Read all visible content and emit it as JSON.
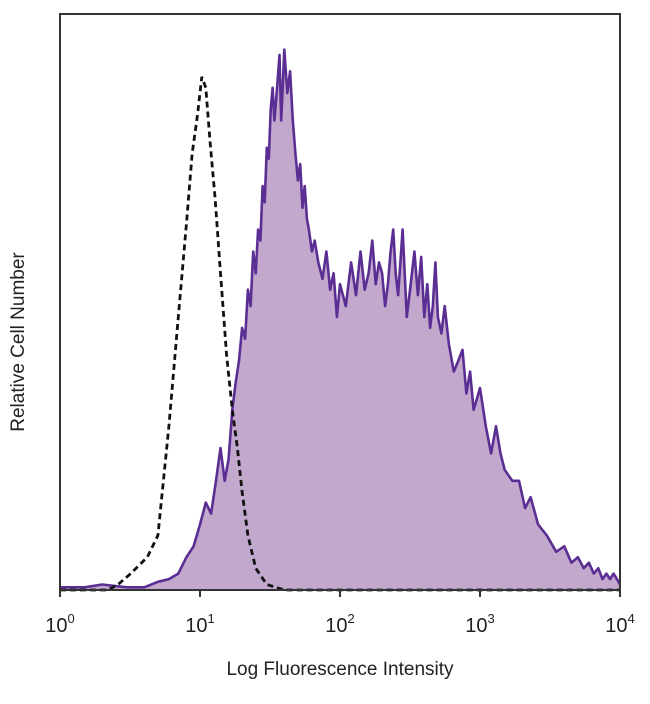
{
  "chart_data": {
    "type": "area",
    "title": "",
    "xlabel": "Log Fluorescence Intensity",
    "ylabel": "Relative Cell Number",
    "x_scale": "log",
    "xlim": [
      1,
      10000
    ],
    "ylim": [
      0,
      100
    ],
    "grid": false,
    "legend": "none",
    "xticks": [
      {
        "base": "10",
        "exp": "0",
        "value": 1
      },
      {
        "base": "10",
        "exp": "1",
        "value": 10
      },
      {
        "base": "10",
        "exp": "2",
        "value": 100
      },
      {
        "base": "10",
        "exp": "3",
        "value": 1000
      },
      {
        "base": "10",
        "exp": "4",
        "value": 10000
      }
    ],
    "series": [
      {
        "style": "dashed",
        "color": "#111111",
        "x": [
          1,
          2.2,
          2.6,
          3.2,
          4.2,
          5,
          6,
          7,
          8,
          8.8,
          9.6,
          10.3,
          11,
          11.8,
          12.8,
          14,
          15.5,
          17,
          18.5,
          20,
          22,
          25,
          30,
          40,
          100,
          1000,
          10000
        ],
        "y": [
          0,
          0,
          1,
          3,
          6,
          10,
          30,
          50,
          67,
          80,
          87,
          94,
          92,
          82,
          72,
          58,
          43,
          33,
          26,
          18,
          10,
          4,
          1,
          0,
          0,
          0,
          0
        ]
      },
      {
        "style": "filled",
        "color": "#5b2e94",
        "fill": "#c2a8cc",
        "x": [
          1,
          1.5,
          2,
          3,
          4,
          5,
          6,
          7,
          8,
          9,
          10,
          11,
          12,
          13,
          14,
          15,
          16,
          17,
          18,
          19,
          20,
          21,
          22,
          23,
          24,
          25,
          26,
          27,
          28,
          29,
          30,
          31,
          32,
          33,
          34,
          35,
          36,
          37,
          38,
          39,
          40,
          42,
          44,
          46,
          48,
          50,
          52,
          54,
          56,
          58,
          60,
          63,
          66,
          70,
          75,
          80,
          85,
          90,
          95,
          100,
          110,
          120,
          130,
          140,
          150,
          160,
          170,
          180,
          190,
          200,
          210,
          220,
          230,
          240,
          250,
          260,
          270,
          280,
          300,
          320,
          340,
          360,
          380,
          400,
          420,
          440,
          460,
          480,
          500,
          530,
          560,
          600,
          650,
          700,
          750,
          800,
          850,
          900,
          950,
          1000,
          1100,
          1200,
          1300,
          1400,
          1500,
          1700,
          1900,
          2100,
          2300,
          2600,
          3000,
          3500,
          4000,
          4500,
          5000,
          5500,
          6000,
          6500,
          7000,
          7500,
          8000,
          8500,
          9000,
          9500,
          10000
        ],
        "y": [
          0.5,
          0.5,
          1,
          0.5,
          0.5,
          1.5,
          2,
          3,
          6,
          8,
          12,
          16,
          14,
          20,
          26,
          20,
          24,
          33,
          38,
          42,
          48,
          46,
          55,
          52,
          62,
          58,
          66,
          64,
          74,
          71,
          81,
          79,
          88,
          92,
          86,
          90,
          94,
          98,
          86,
          92,
          99,
          91,
          95,
          86,
          80,
          75,
          78,
          70,
          74,
          68,
          66,
          62,
          64,
          60,
          57,
          62,
          55,
          58,
          50,
          56,
          52,
          60,
          54,
          62,
          55,
          58,
          64,
          56,
          60,
          58,
          52,
          56,
          62,
          66,
          58,
          54,
          60,
          66,
          50,
          56,
          62,
          54,
          61,
          50,
          56,
          48,
          52,
          60,
          50,
          47,
          52,
          45,
          40,
          42,
          44,
          36,
          40,
          33,
          35,
          37,
          30,
          25,
          30,
          25,
          22,
          20,
          20,
          15,
          17,
          12,
          10,
          7,
          8,
          5,
          6,
          4,
          5,
          3,
          4,
          2,
          3,
          2,
          3,
          2,
          1
        ]
      }
    ]
  }
}
